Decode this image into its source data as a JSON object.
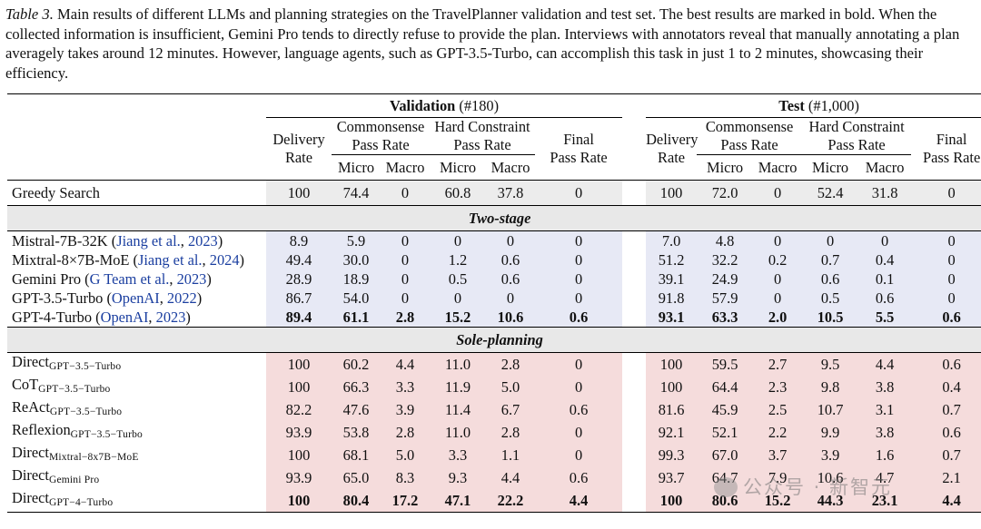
{
  "caption": {
    "label": "Table 3.",
    "text": " Main results of different LLMs and planning strategies on the TravelPlanner validation and test set. The best results are marked in bold. When the collected information is insufficient, Gemini Pro tends to directly refuse to provide the plan. Interviews with annotators reveal that manually annotating a plan averagely takes around 12 minutes. However, language agents, such as GPT-3.5-Turbo, can accomplish this task in just 1 to 2 minutes, showcasing their efficiency."
  },
  "groups": {
    "validation_bold": "Validation",
    "validation_rest": " (#180)",
    "test_bold": "Test",
    "test_rest": " (#1,000)"
  },
  "headers": {
    "delivery_1": "Delivery",
    "delivery_2": "Rate",
    "common_1": "Commonsense",
    "common_2": "Pass Rate",
    "hard_1": "Hard Constraint",
    "hard_2": "Pass Rate",
    "final_1": "Final",
    "final_2": "Pass Rate",
    "micro": "Micro",
    "macro": "Macro"
  },
  "sections": {
    "two_stage": "Two-stage",
    "sole_planning": "Sole-planning"
  },
  "greedy": {
    "name": "Greedy Search",
    "values": [
      "100",
      "74.4",
      "0",
      "60.8",
      "37.8",
      "0",
      "100",
      "72.0",
      "0",
      "52.4",
      "31.8",
      "0"
    ]
  },
  "two_stage_rows": [
    {
      "name": "Mistral-7B-32K (",
      "cite_a": "Jiang et al.",
      "mid": ", ",
      "cite_b": "2023",
      "end": ")",
      "values": [
        "8.9",
        "5.9",
        "0",
        "0",
        "0",
        "0",
        "7.0",
        "4.8",
        "0",
        "0",
        "0",
        "0"
      ]
    },
    {
      "name": "Mixtral-8×7B-MoE (",
      "cite_a": "Jiang et al.",
      "mid": ", ",
      "cite_b": "2024",
      "end": ")",
      "values": [
        "49.4",
        "30.0",
        "0",
        "1.2",
        "0.6",
        "0",
        "51.2",
        "32.2",
        "0.2",
        "0.7",
        "0.4",
        "0"
      ]
    },
    {
      "name": "Gemini Pro (",
      "cite_a": "G Team et al.",
      "mid": ", ",
      "cite_b": "2023",
      "end": ")",
      "values": [
        "28.9",
        "18.9",
        "0",
        "0.5",
        "0.6",
        "0",
        "39.1",
        "24.9",
        "0",
        "0.6",
        "0.1",
        "0"
      ]
    },
    {
      "name": "GPT-3.5-Turbo (",
      "cite_a": "OpenAI",
      "mid": ", ",
      "cite_b": "2022",
      "end": ")",
      "values": [
        "86.7",
        "54.0",
        "0",
        "0",
        "0",
        "0",
        "91.8",
        "57.9",
        "0",
        "0.5",
        "0.6",
        "0"
      ]
    },
    {
      "name": "GPT-4-Turbo (",
      "cite_a": "OpenAI",
      "mid": ", ",
      "cite_b": "2023",
      "end": ")",
      "values": [
        "89.4",
        "61.1",
        "2.8",
        "15.2",
        "10.6",
        "0.6",
        "93.1",
        "63.3",
        "2.0",
        "10.5",
        "5.5",
        "0.6"
      ]
    }
  ],
  "sole_rows": [
    {
      "name": "Direct",
      "sub": "GPT−3.5−Turbo",
      "values": [
        "100",
        "60.2",
        "4.4",
        "11.0",
        "2.8",
        "0",
        "100",
        "59.5",
        "2.7",
        "9.5",
        "4.4",
        "0.6"
      ]
    },
    {
      "name": "CoT",
      "sub": "GPT−3.5−Turbo",
      "values": [
        "100",
        "66.3",
        "3.3",
        "11.9",
        "5.0",
        "0",
        "100",
        "64.4",
        "2.3",
        "9.8",
        "3.8",
        "0.4"
      ]
    },
    {
      "name": "ReAct",
      "sub": "GPT−3.5−Turbo",
      "values": [
        "82.2",
        "47.6",
        "3.9",
        "11.4",
        "6.7",
        "0.6",
        "81.6",
        "45.9",
        "2.5",
        "10.7",
        "3.1",
        "0.7"
      ]
    },
    {
      "name": "Reflexion",
      "sub": "GPT−3.5−Turbo",
      "values": [
        "93.9",
        "53.8",
        "2.8",
        "11.0",
        "2.8",
        "0",
        "92.1",
        "52.1",
        "2.2",
        "9.9",
        "3.8",
        "0.6"
      ]
    },
    {
      "name": "Direct",
      "sub": "Mixtral−8x7B−MoE",
      "values": [
        "100",
        "68.1",
        "5.0",
        "3.3",
        "1.1",
        "0",
        "99.3",
        "67.0",
        "3.7",
        "3.9",
        "1.6",
        "0.7"
      ]
    },
    {
      "name": "Direct",
      "sub": "Gemini Pro",
      "values": [
        "93.9",
        "65.0",
        "8.3",
        "9.3",
        "4.4",
        "0.6",
        "93.7",
        "64.7",
        "7.9",
        "10.6",
        "4.7",
        "2.1"
      ]
    },
    {
      "name": "Direct",
      "sub": "GPT−4−Turbo",
      "values": [
        "100",
        "80.4",
        "17.2",
        "47.1",
        "22.2",
        "4.4",
        "100",
        "80.6",
        "15.2",
        "44.3",
        "23.1",
        "4.4"
      ]
    }
  ],
  "watermark": "公众号 · 新智元"
}
